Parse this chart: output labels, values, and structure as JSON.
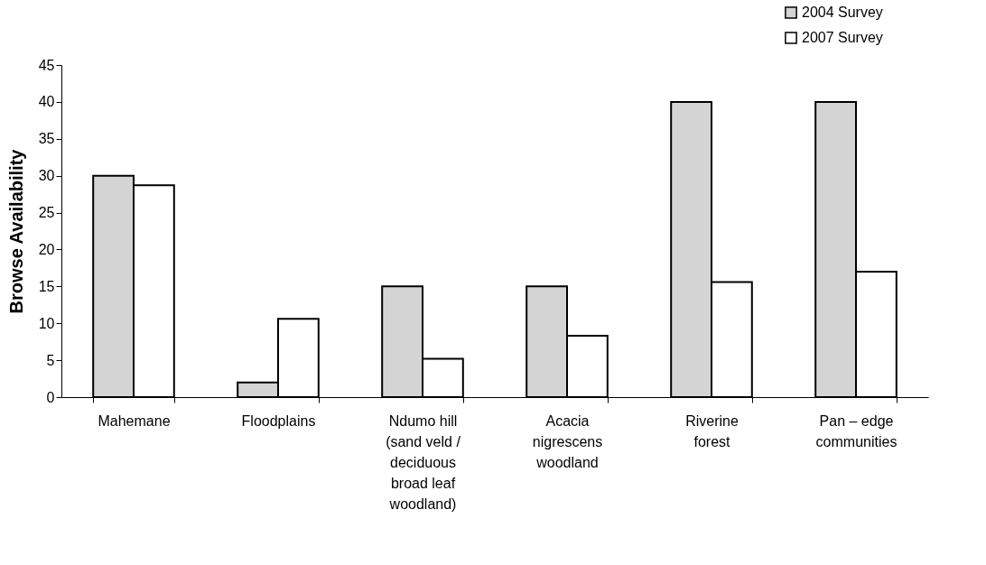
{
  "chart_data": {
    "type": "bar",
    "ylabel": "Browse Availability",
    "categories": [
      "Mahemane",
      "Floodplains",
      "Ndumo hill\n(sand veld /\ndeciduous\nbroad leaf\nwoodland)",
      "Acacia\nnigrescens\nwoodland",
      "Riverine\nforest",
      "Pan – edge\ncommunities"
    ],
    "series": [
      {
        "name": "2004 Survey",
        "color": "#d4d4d4",
        "values": [
          30,
          2,
          15,
          15,
          40,
          40
        ]
      },
      {
        "name": "2007 Survey",
        "color": "#ffffff",
        "values": [
          28.7,
          10.6,
          5.2,
          8.3,
          15.6,
          17.0
        ]
      }
    ],
    "ylim": [
      0,
      45
    ],
    "yticks": [
      0,
      5,
      10,
      15,
      20,
      25,
      30,
      35,
      40,
      45
    ],
    "grid": false,
    "legend": "top right"
  }
}
